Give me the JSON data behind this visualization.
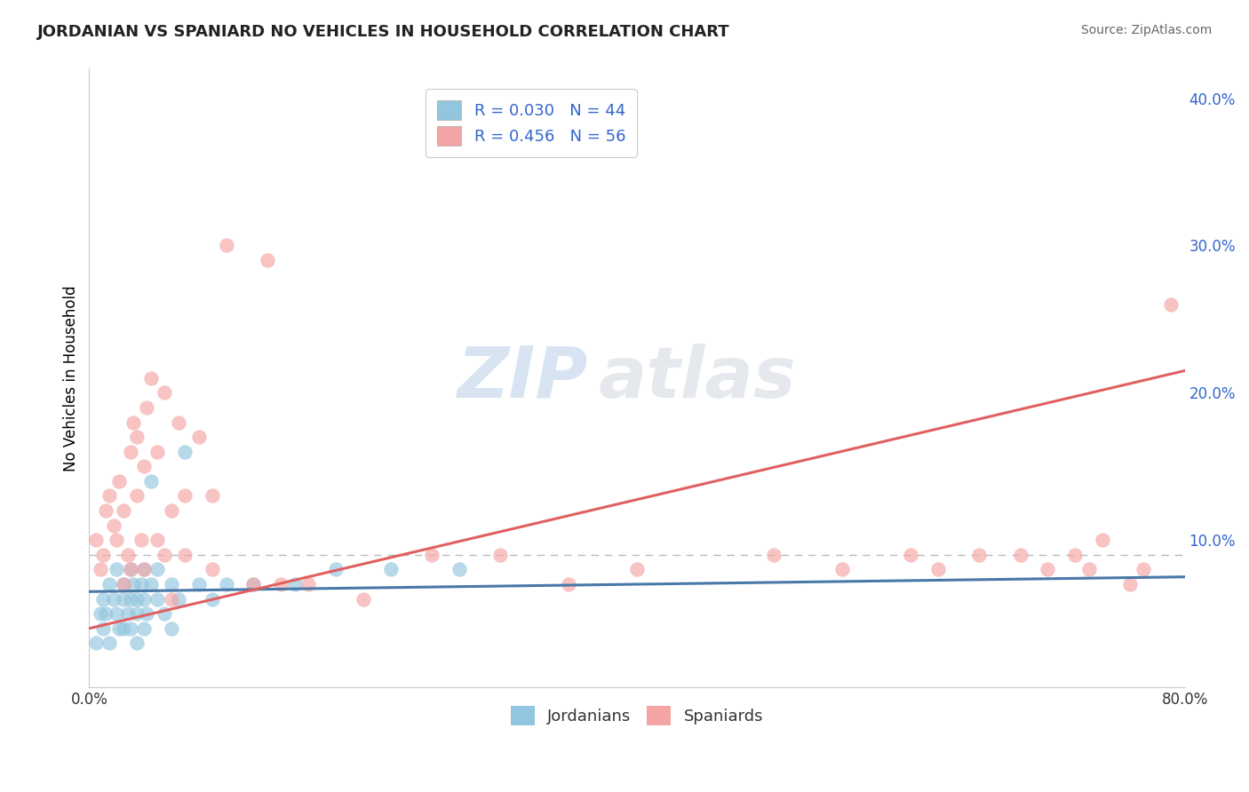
{
  "title": "JORDANIAN VS SPANIARD NO VEHICLES IN HOUSEHOLD CORRELATION CHART",
  "source": "Source: ZipAtlas.com",
  "ylabel": "No Vehicles in Household",
  "xlim": [
    0.0,
    0.8
  ],
  "ylim": [
    0.0,
    0.42
  ],
  "color_jordanian": "#92c5de",
  "color_spaniard": "#f4a4a4",
  "color_line_jordan": "#4878a8",
  "color_line_spain": "#e06060",
  "color_dashed": "#bbbbbb",
  "background_color": "#ffffff",
  "jordan_R": 0.03,
  "jordan_N": 44,
  "spain_R": 0.456,
  "spain_N": 56,
  "jordan_line_x0": 0.0,
  "jordan_line_y0": 0.065,
  "jordan_line_x1": 0.8,
  "jordan_line_y1": 0.075,
  "spain_line_x0": 0.0,
  "spain_line_y0": 0.04,
  "spain_line_x1": 0.8,
  "spain_line_y1": 0.215,
  "dashed_line_y": 0.09,
  "jordanian_x": [
    0.005,
    0.008,
    0.01,
    0.01,
    0.012,
    0.015,
    0.015,
    0.018,
    0.02,
    0.02,
    0.022,
    0.025,
    0.025,
    0.025,
    0.028,
    0.03,
    0.03,
    0.03,
    0.032,
    0.035,
    0.035,
    0.035,
    0.038,
    0.04,
    0.04,
    0.04,
    0.042,
    0.045,
    0.045,
    0.05,
    0.05,
    0.055,
    0.06,
    0.06,
    0.065,
    0.07,
    0.08,
    0.09,
    0.1,
    0.12,
    0.15,
    0.18,
    0.22,
    0.27
  ],
  "jordanian_y": [
    0.03,
    0.05,
    0.06,
    0.04,
    0.05,
    0.07,
    0.03,
    0.06,
    0.05,
    0.08,
    0.04,
    0.06,
    0.04,
    0.07,
    0.05,
    0.08,
    0.06,
    0.04,
    0.07,
    0.05,
    0.06,
    0.03,
    0.07,
    0.06,
    0.04,
    0.08,
    0.05,
    0.07,
    0.14,
    0.06,
    0.08,
    0.05,
    0.07,
    0.04,
    0.06,
    0.16,
    0.07,
    0.06,
    0.07,
    0.07,
    0.07,
    0.08,
    0.08,
    0.08
  ],
  "spaniard_x": [
    0.005,
    0.008,
    0.01,
    0.012,
    0.015,
    0.018,
    0.02,
    0.022,
    0.025,
    0.025,
    0.028,
    0.03,
    0.03,
    0.032,
    0.035,
    0.035,
    0.038,
    0.04,
    0.04,
    0.042,
    0.045,
    0.05,
    0.05,
    0.055,
    0.055,
    0.06,
    0.06,
    0.065,
    0.07,
    0.07,
    0.08,
    0.09,
    0.09,
    0.1,
    0.12,
    0.13,
    0.14,
    0.16,
    0.2,
    0.25,
    0.3,
    0.35,
    0.4,
    0.5,
    0.55,
    0.6,
    0.62,
    0.65,
    0.68,
    0.7,
    0.72,
    0.73,
    0.74,
    0.76,
    0.77,
    0.79
  ],
  "spaniard_y": [
    0.1,
    0.08,
    0.09,
    0.12,
    0.13,
    0.11,
    0.1,
    0.14,
    0.07,
    0.12,
    0.09,
    0.08,
    0.16,
    0.18,
    0.13,
    0.17,
    0.1,
    0.15,
    0.08,
    0.19,
    0.21,
    0.1,
    0.16,
    0.09,
    0.2,
    0.06,
    0.12,
    0.18,
    0.13,
    0.09,
    0.17,
    0.08,
    0.13,
    0.3,
    0.07,
    0.29,
    0.07,
    0.07,
    0.06,
    0.09,
    0.09,
    0.07,
    0.08,
    0.09,
    0.08,
    0.09,
    0.08,
    0.09,
    0.09,
    0.08,
    0.09,
    0.08,
    0.1,
    0.07,
    0.08,
    0.26
  ]
}
